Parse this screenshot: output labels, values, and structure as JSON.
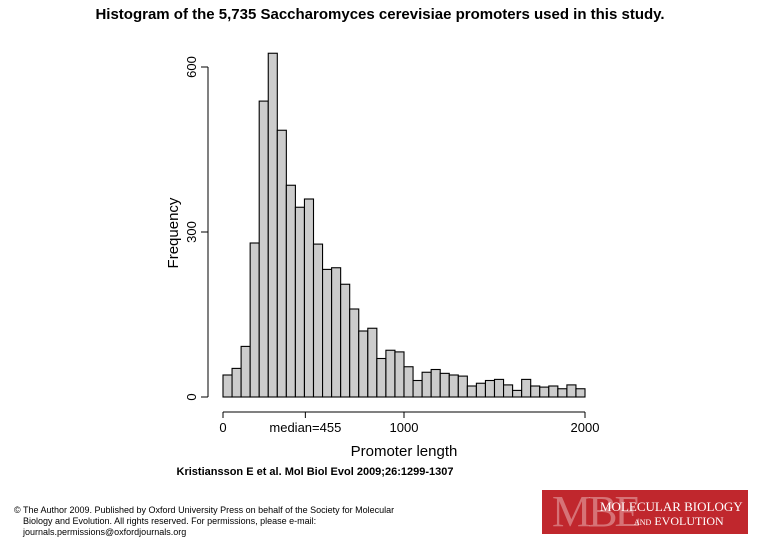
{
  "title": "Histogram of the 5,735 Saccharomyces cerevisiae promoters used in this study.",
  "citation": "Kristiansson E et al. Mol Biol Evol 2009;26:1299-1307",
  "copyright": [
    "© The Author 2009. Published by Oxford University Press on behalf of the Society for Molecular",
    "Biology and Evolution. All rights reserved. For permissions, please e-mail:",
    "journals.permissions@oxfordjournals.org"
  ],
  "logo": {
    "mark": "MBE",
    "line1": "MOLECULAR BIOLOGY",
    "line2": "and EVOLUTION",
    "color": "#c0272d"
  },
  "chart_data": {
    "type": "bar",
    "subtype": "histogram",
    "xlabel": "Promoter length",
    "ylabel": "Frequency",
    "bin_width": 50,
    "bin_start": 0,
    "xlim": [
      0,
      2000
    ],
    "ylim": [
      0,
      620
    ],
    "x_ticks": [
      {
        "value": 0,
        "label": "0"
      },
      {
        "value": 455,
        "label": "median=455"
      },
      {
        "value": 1000,
        "label": "1000"
      },
      {
        "value": 2000,
        "label": "2000"
      }
    ],
    "y_ticks": [
      {
        "value": 0,
        "label": "0"
      },
      {
        "value": 300,
        "label": "300"
      },
      {
        "value": 600,
        "label": "600"
      }
    ],
    "values": [
      40,
      52,
      92,
      280,
      538,
      625,
      485,
      385,
      345,
      360,
      278,
      232,
      235,
      205,
      160,
      120,
      125,
      70,
      85,
      82,
      55,
      30,
      45,
      50,
      43,
      40,
      38,
      20,
      25,
      30,
      32,
      22,
      12,
      32,
      20,
      18,
      20,
      15,
      22,
      15
    ],
    "bar_color": "#cccccc",
    "grid": false
  }
}
